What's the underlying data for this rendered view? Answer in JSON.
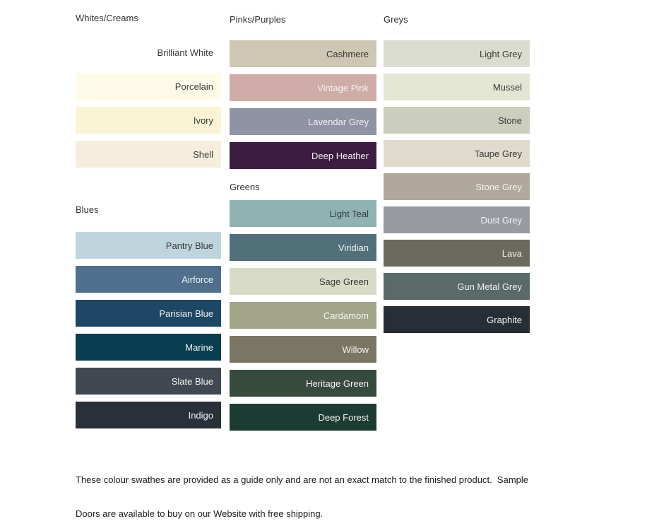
{
  "page": {
    "background": "#ffffff",
    "text_dark": "#3a3a3a",
    "text_light": "#f2f2f2"
  },
  "groups": [
    {
      "id": "whites-creams",
      "title": "Whites/Creams",
      "swatches": [
        {
          "name": "Brilliant White",
          "color": "#ffffff",
          "text": "dark"
        },
        {
          "name": "Porcelain",
          "color": "#fefce9",
          "text": "dark"
        },
        {
          "name": "Ivory",
          "color": "#faf4d5",
          "text": "dark"
        },
        {
          "name": "Shell",
          "color": "#f6eddf",
          "text": "dark"
        }
      ]
    },
    {
      "id": "blues",
      "title": "Blues",
      "swatches": [
        {
          "name": "Pantry Blue",
          "color": "#bfd5dd",
          "text": "dark"
        },
        {
          "name": "Airforce",
          "color": "#4f6f8d",
          "text": "light"
        },
        {
          "name": "Parisian Blue",
          "color": "#1d4765",
          "text": "light"
        },
        {
          "name": "Marine",
          "color": "#073f50",
          "text": "light"
        },
        {
          "name": "Slate Blue",
          "color": "#424852",
          "text": "light"
        },
        {
          "name": "Indigo",
          "color": "#2a303a",
          "text": "light"
        }
      ]
    },
    {
      "id": "pinks-purples",
      "title": "Pinks/Purples",
      "swatches": [
        {
          "name": "Cashmere",
          "color": "#cec7b4",
          "text": "dark"
        },
        {
          "name": "Vintage Pink",
          "color": "#d0aca8",
          "text": "light"
        },
        {
          "name": "Lavendar Grey",
          "color": "#8f93a3",
          "text": "light"
        },
        {
          "name": "Deep Heather",
          "color": "#3c1c41",
          "text": "light"
        }
      ]
    },
    {
      "id": "greens",
      "title": "Greens",
      "swatches": [
        {
          "name": "Light Teal",
          "color": "#90b2b3",
          "text": "dark"
        },
        {
          "name": "Viridian",
          "color": "#52707a",
          "text": "light"
        },
        {
          "name": "Sage Green",
          "color": "#d8dcc7",
          "text": "dark"
        },
        {
          "name": "Cardamom",
          "color": "#a3a58a",
          "text": "light"
        },
        {
          "name": "Willow",
          "color": "#7b7663",
          "text": "light"
        },
        {
          "name": "Heritage Green",
          "color": "#374a3e",
          "text": "light"
        },
        {
          "name": "Deep Forest",
          "color": "#1c3b33",
          "text": "light"
        }
      ]
    },
    {
      "id": "greys",
      "title": "Greys",
      "swatches": [
        {
          "name": "Light Grey",
          "color": "#dadcd0",
          "text": "dark"
        },
        {
          "name": "Mussel",
          "color": "#e3e6d3",
          "text": "dark"
        },
        {
          "name": "Stone",
          "color": "#cbcebd",
          "text": "dark"
        },
        {
          "name": "Taupe Grey",
          "color": "#dfdacb",
          "text": "dark"
        },
        {
          "name": "Stone Grey",
          "color": "#afa89b",
          "text": "light"
        },
        {
          "name": "Dust Grey",
          "color": "#999ba3",
          "text": "light"
        },
        {
          "name": "Lava",
          "color": "#6c6a5f",
          "text": "light"
        },
        {
          "name": "Gun Metal Grey",
          "color": "#596a68",
          "text": "light"
        },
        {
          "name": "Graphite",
          "color": "#282e36",
          "text": "light"
        }
      ]
    }
  ],
  "footer": {
    "line1": "These colour swathes are provided as a guide only and are not an exact match to the finished product.  Sample",
    "line2": "Doors are available to buy on our Website with free shipping."
  }
}
